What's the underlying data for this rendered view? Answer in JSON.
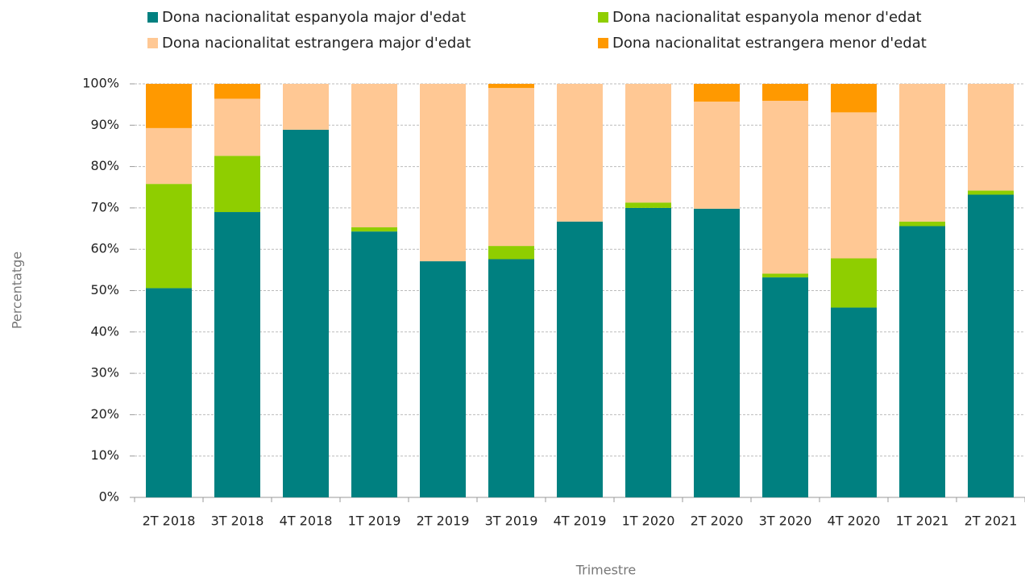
{
  "chart_data": {
    "type": "stacked_bar",
    "categories": [
      "2T 2018",
      "3T 2018",
      "4T 2018",
      "1T 2019",
      "2T 2019",
      "3T 2019",
      "4T 2019",
      "1T 2020",
      "2T 2020",
      "3T 2020",
      "4T 2020",
      "1T 2021",
      "2T 2021"
    ],
    "series": [
      {
        "name": "Dona nacionalitat espanyola major d'edat",
        "color": "#008080",
        "values": [
          50.6,
          69.0,
          88.9,
          64.3,
          57.1,
          57.6,
          66.7,
          70.0,
          69.8,
          53.2,
          45.9,
          65.6,
          73.2
        ]
      },
      {
        "name": "Dona nacionalitat espanyola menor d'edat",
        "color": "#8fce00",
        "values": [
          25.2,
          13.6,
          0,
          1.0,
          0,
          3.2,
          0,
          1.3,
          0,
          0.9,
          11.9,
          1.1,
          1.0
        ]
      },
      {
        "name": "Dona nacionalitat estrangera major d'edat",
        "color": "#ffc894",
        "values": [
          13.5,
          13.8,
          11.1,
          34.7,
          42.9,
          38.2,
          33.3,
          28.7,
          25.9,
          41.8,
          35.3,
          33.3,
          25.8
        ]
      },
      {
        "name": "Dona nacionalitat estrangera menor d'edat",
        "color": "#ff9900",
        "values": [
          10.7,
          3.6,
          0,
          0,
          0,
          1.0,
          0,
          0,
          4.3,
          4.1,
          6.9,
          0,
          0
        ]
      }
    ],
    "ylim": [
      0,
      100
    ],
    "yticks": [
      {
        "value": 0,
        "label": "0%"
      },
      {
        "value": 10,
        "label": "10%"
      },
      {
        "value": 20,
        "label": "20%"
      },
      {
        "value": 30,
        "label": "30%"
      },
      {
        "value": 40,
        "label": "40%"
      },
      {
        "value": 50,
        "label": "50%"
      },
      {
        "value": 60,
        "label": "60%"
      },
      {
        "value": 70,
        "label": "70%"
      },
      {
        "value": 80,
        "label": "80%"
      },
      {
        "value": 90,
        "label": "90%"
      },
      {
        "value": 100,
        "label": "100%"
      }
    ],
    "ylabel": "Percentatge",
    "xlabel": "Trimestre",
    "grid": true
  }
}
